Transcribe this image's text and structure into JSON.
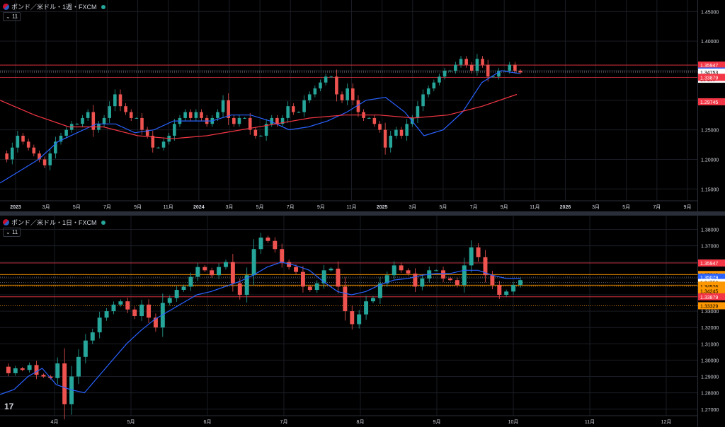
{
  "panes": [
    {
      "title": "ポンド／米ドル・1週・FXCM",
      "indicator_label": "11",
      "price_range": [
        1.13,
        1.46
      ],
      "price_ticks": [
        "1.45000",
        "1.40000",
        "1.35000",
        "1.30000",
        "1.25000",
        "1.20000",
        "1.15000"
      ],
      "price_tick_values": [
        1.45,
        1.4,
        1.35,
        1.3,
        1.25,
        1.2,
        1.15
      ],
      "time_labels": [
        "2023",
        "3月",
        "5月",
        "7月",
        "9月",
        "11月",
        "2024",
        "3月",
        "5月",
        "7月",
        "9月",
        "11月",
        "2025",
        "3月",
        "5月",
        "7月",
        "9月",
        "11月",
        "2026",
        "3月",
        "5月",
        "7月",
        "9月"
      ],
      "hlines": [
        {
          "price": 1.35947,
          "color": "#f23645",
          "style": "solid"
        },
        {
          "price": 1.33879,
          "color": "#f23645",
          "style": "solid"
        },
        {
          "price": 1.34945,
          "color": "#787b86",
          "style": "dotted"
        },
        {
          "price": 1.34753,
          "color": "#787b86",
          "style": "dotted"
        }
      ],
      "labels": [
        {
          "text": "1.35947",
          "price": 1.35947,
          "bg": "#f23645",
          "fg": "#ffffff"
        },
        {
          "text": "1.34945",
          "price": 1.34945,
          "bg": "#2962ff",
          "fg": "#ffffff"
        },
        {
          "text": "1.34753",
          "price": 1.34753,
          "bg": "#ffffff",
          "fg": "#000000",
          "sub": "1d 10h"
        },
        {
          "text": "1.33879",
          "price": 1.33879,
          "bg": "#f23645",
          "fg": "#ffffff"
        },
        {
          "text": "1.29745",
          "price": 1.29745,
          "bg": "#f23645",
          "fg": "#ffffff"
        }
      ]
    },
    {
      "title": "ポンド／米ドル・1日・FXCM",
      "indicator_label": "11",
      "price_range": [
        1.266,
        1.385
      ],
      "price_ticks": [
        "1.38000",
        "1.37000",
        "1.36000",
        "1.35000",
        "1.34000",
        "1.33000",
        "1.32000",
        "1.31000",
        "1.30000",
        "1.29000",
        "1.28000",
        "1.27000"
      ],
      "price_tick_values": [
        1.38,
        1.37,
        1.36,
        1.35,
        1.34,
        1.33,
        1.32,
        1.31,
        1.3,
        1.29,
        1.28,
        1.27
      ],
      "time_labels": [
        "4月",
        "5月",
        "6月",
        "7月",
        "8月",
        "9月",
        "10月",
        "11月",
        "12月"
      ],
      "hlines": [
        {
          "price": 1.35947,
          "color": "#f23645",
          "style": "solid"
        },
        {
          "price": 1.35242,
          "color": "#ff9800",
          "style": "solid"
        },
        {
          "price": 1.35079,
          "color": "#787b86",
          "style": "dotted"
        },
        {
          "price": 1.34753,
          "color": "#787b86",
          "style": "dotted"
        },
        {
          "price": 1.34592,
          "color": "#ff9800",
          "style": "solid"
        },
        {
          "price": 1.34526,
          "color": "#ff9800",
          "style": "dotted"
        },
        {
          "price": 1.33879,
          "color": "#f23645",
          "style": "solid"
        },
        {
          "price": 1.33329,
          "color": "#ff9800",
          "style": "dotted"
        }
      ],
      "labels": [
        {
          "text": "1.35947",
          "price": 1.35947,
          "bg": "#f23645",
          "fg": "#ffffff"
        },
        {
          "text": "1.35242",
          "price": 1.35242,
          "bg": "#ff9800",
          "fg": "#000000"
        },
        {
          "text": "1.35079",
          "price": 1.35079,
          "bg": "#2962ff",
          "fg": "#ffffff"
        },
        {
          "text": "1.34753",
          "price": 1.34753,
          "bg": "#ffffff",
          "fg": "#000000",
          "sub": "09:38:24"
        },
        {
          "text": "1.34592",
          "price": 1.34592,
          "bg": "#ff9800",
          "fg": "#000000"
        },
        {
          "text": "1.34526",
          "price": 1.34526,
          "bg": "#ff9800",
          "fg": "#000000"
        },
        {
          "text": "1.34245",
          "price": 1.34245,
          "bg": "#ff9800",
          "fg": "#000000"
        },
        {
          "text": "1.33879",
          "price": 1.33879,
          "bg": "#f23645",
          "fg": "#ffffff"
        },
        {
          "text": "1.33329",
          "price": 1.33329,
          "bg": "#ff9800",
          "fg": "#000000"
        }
      ]
    }
  ],
  "tv_logo": "17",
  "colors": {
    "up": "#26a69a",
    "down": "#ef5350",
    "ma_fast": "#2962ff",
    "ma_slow": "#f23645",
    "zigzag": "#c2185b",
    "grid": "#1a1d24",
    "text": "#d1d4dc"
  },
  "chart_data": [
    {
      "type": "candlestick",
      "title": "ポンド／米ドル・1週・FXCM",
      "series": [
        {
          "name": "price_path",
          "values": [
            1.21,
            1.2,
            1.22,
            1.24,
            1.23,
            1.22,
            1.21,
            1.2,
            1.19,
            1.21,
            1.23,
            1.24,
            1.25,
            1.26,
            1.26,
            1.27,
            1.28,
            1.25,
            1.26,
            1.27,
            1.29,
            1.31,
            1.29,
            1.28,
            1.27,
            1.27,
            1.25,
            1.24,
            1.22,
            1.22,
            1.23,
            1.24,
            1.26,
            1.27,
            1.28,
            1.27,
            1.28,
            1.27,
            1.26,
            1.27,
            1.28,
            1.3,
            1.27,
            1.26,
            1.27,
            1.27,
            1.25,
            1.24,
            1.24,
            1.26,
            1.27,
            1.26,
            1.27,
            1.29,
            1.28,
            1.28,
            1.3,
            1.31,
            1.32,
            1.33,
            1.34,
            1.34,
            1.31,
            1.3,
            1.32,
            1.3,
            1.28,
            1.27,
            1.27,
            1.26,
            1.25,
            1.22,
            1.24,
            1.25,
            1.24,
            1.26,
            1.27,
            1.29,
            1.31,
            1.32,
            1.33,
            1.34,
            1.35,
            1.35,
            1.36,
            1.37,
            1.36,
            1.35,
            1.37,
            1.36,
            1.34,
            1.34,
            1.35,
            1.35,
            1.36,
            1.35,
            1.347
          ]
        },
        {
          "name": "ma_fast",
          "values": [
            1.16,
            1.18,
            1.2,
            1.23,
            1.245,
            1.26,
            1.26,
            1.245,
            1.25,
            1.265,
            1.265,
            1.265,
            1.275,
            1.275,
            1.265,
            1.25,
            1.255,
            1.265,
            1.28,
            1.3,
            1.305,
            1.28,
            1.24,
            1.25,
            1.28,
            1.33,
            1.35,
            1.345
          ]
        },
        {
          "name": "ma_slow",
          "values": [
            1.3,
            1.275,
            1.255,
            1.255,
            1.24,
            1.235,
            1.24,
            1.25,
            1.26,
            1.27,
            1.275,
            1.275,
            1.27,
            1.275,
            1.29,
            1.31
          ]
        }
      ]
    },
    {
      "type": "candlestick",
      "title": "ポンド／米ドル・1日・FXCM",
      "series": [
        {
          "name": "price_path",
          "values": [
            1.296,
            1.292,
            1.295,
            1.294,
            1.297,
            1.291,
            1.29,
            1.289,
            1.298,
            1.273,
            1.29,
            1.302,
            1.312,
            1.317,
            1.326,
            1.33,
            1.334,
            1.336,
            1.331,
            1.327,
            1.334,
            1.326,
            1.32,
            1.335,
            1.338,
            1.343,
            1.345,
            1.351,
            1.357,
            1.355,
            1.352,
            1.357,
            1.36,
            1.347,
            1.34,
            1.352,
            1.368,
            1.375,
            1.373,
            1.368,
            1.36,
            1.357,
            1.354,
            1.345,
            1.343,
            1.347,
            1.355,
            1.356,
            1.345,
            1.33,
            1.322,
            1.328,
            1.336,
            1.338,
            1.347,
            1.352,
            1.358,
            1.355,
            1.353,
            1.345,
            1.35,
            1.355,
            1.355,
            1.35,
            1.349,
            1.346,
            1.358,
            1.369,
            1.363,
            1.352,
            1.346,
            1.34,
            1.342,
            1.346,
            1.349
          ]
        },
        {
          "name": "ma_fast",
          "values": [
            1.279,
            1.282,
            1.29,
            1.295,
            1.285,
            1.282,
            1.28,
            1.29,
            1.3,
            1.31,
            1.318,
            1.325,
            1.33,
            1.335,
            1.34,
            1.342,
            1.345,
            1.348,
            1.352,
            1.357,
            1.36,
            1.358,
            1.355,
            1.348,
            1.342,
            1.34,
            1.342,
            1.346,
            1.349,
            1.35,
            1.352,
            1.353,
            1.353,
            1.355,
            1.355,
            1.352,
            1.35,
            1.35
          ]
        }
      ]
    }
  ]
}
